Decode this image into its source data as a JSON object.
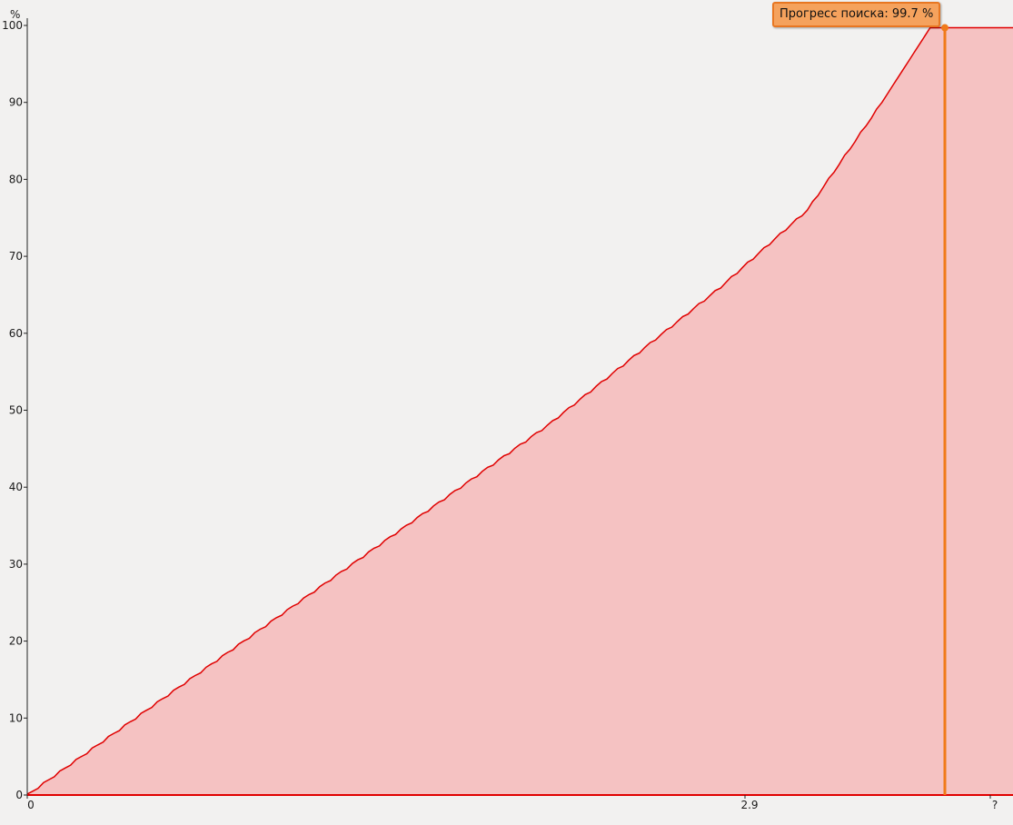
{
  "chart_data": {
    "type": "area",
    "y_unit": "%",
    "ylim": [
      0,
      100
    ],
    "y_ticks": [
      "0",
      "10",
      "20",
      "30",
      "40",
      "50",
      "60",
      "70",
      "80",
      "90",
      "100"
    ],
    "x_ticks": [
      "0",
      "2.9",
      "?"
    ],
    "grid": false,
    "series": [
      {
        "values_x": [
          0,
          0.36,
          0.72,
          1.08,
          1.44,
          1.8,
          2.16,
          2.52,
          2.88,
          3.24,
          3.55,
          3.75,
          4.0
        ],
        "values_y": [
          0,
          8,
          16,
          24,
          32,
          40,
          48,
          57,
          66,
          76,
          90,
          99.7,
          99.7
        ],
        "fill_color": "#f5c2c2",
        "line_color": "#e00000"
      }
    ],
    "cursor": {
      "x": 3.75,
      "y": 99.7,
      "color": "#f07a1a"
    },
    "tooltip": "Прогресс поиска: 99.7 %"
  }
}
